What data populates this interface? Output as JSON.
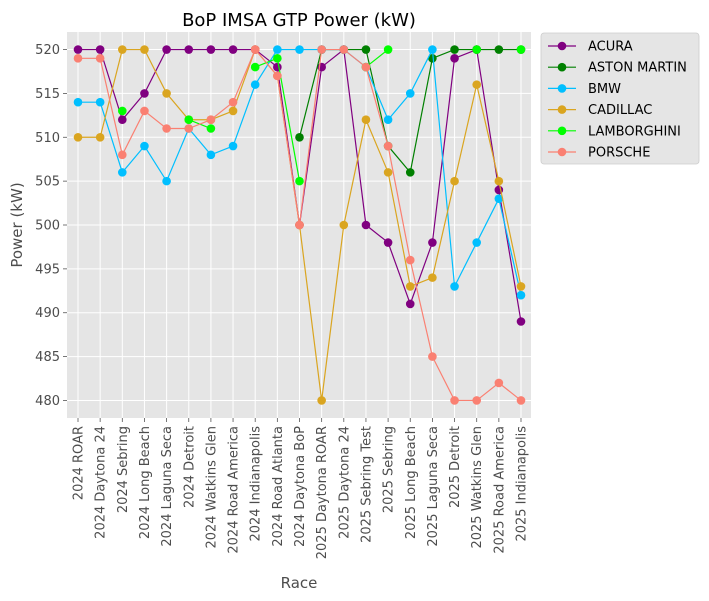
{
  "chart_data": {
    "type": "line",
    "title": "BoP IMSA GTP Power (kW)",
    "xlabel": "Race",
    "ylabel": "Power (kW)",
    "ylim": [
      478,
      522
    ],
    "yticks": [
      480,
      485,
      490,
      495,
      500,
      505,
      510,
      515,
      520
    ],
    "grid": true,
    "legend_position": "outside-top-right",
    "categories": [
      "2024 ROAR",
      "2024 Daytona 24",
      "2024 Sebring",
      "2024 Long Beach",
      "2024 Laguna Seca",
      "2024 Detroit",
      "2024 Watkins Glen",
      "2024 Road America",
      "2024 Indianapolis",
      "2024 Road Atlanta",
      "2024 Daytona BoP",
      "2025 Daytona ROAR",
      "2025 Daytona 24",
      "2025 Sebring Test",
      "2025 Sebring",
      "2025 Long Beach",
      "2025 Laguna Seca",
      "2025 Detroit",
      "2025 Watkins Glen",
      "2025 Road America",
      "2025 Indianapolis"
    ],
    "series": [
      {
        "name": "ACURA",
        "color": "#800080",
        "values": [
          520,
          520,
          512,
          515,
          520,
          520,
          520,
          520,
          520,
          518,
          500,
          518,
          520,
          500,
          498,
          491,
          498,
          519,
          520,
          504,
          489
        ]
      },
      {
        "name": "ASTON MARTIN",
        "color": "#008000",
        "values": [
          null,
          null,
          null,
          null,
          null,
          null,
          null,
          null,
          null,
          null,
          510,
          520,
          520,
          520,
          509,
          506,
          519,
          520,
          520,
          520,
          520
        ]
      },
      {
        "name": "BMW",
        "color": "#00bfff",
        "values": [
          514,
          514,
          506,
          509,
          505,
          511,
          508,
          509,
          516,
          520,
          520,
          520,
          520,
          518,
          512,
          515,
          520,
          493,
          498,
          503,
          492
        ]
      },
      {
        "name": "CADILLAC",
        "color": "#daa520",
        "values": [
          510,
          510,
          520,
          520,
          515,
          512,
          512,
          513,
          520,
          517,
          500,
          480,
          500,
          512,
          506,
          493,
          494,
          505,
          516,
          505,
          493
        ]
      },
      {
        "name": "LAMBORGHINI",
        "color": "#00ff00",
        "values": [
          null,
          null,
          513,
          null,
          null,
          512,
          511,
          null,
          518,
          519,
          505,
          null,
          null,
          518,
          520,
          null,
          null,
          null,
          520,
          null,
          520
        ]
      },
      {
        "name": "PORSCHE",
        "color": "#fa8072",
        "values": [
          519,
          519,
          508,
          513,
          511,
          511,
          512,
          514,
          520,
          517,
          500,
          520,
          520,
          518,
          509,
          496,
          485,
          480,
          480,
          482,
          480
        ]
      }
    ]
  }
}
